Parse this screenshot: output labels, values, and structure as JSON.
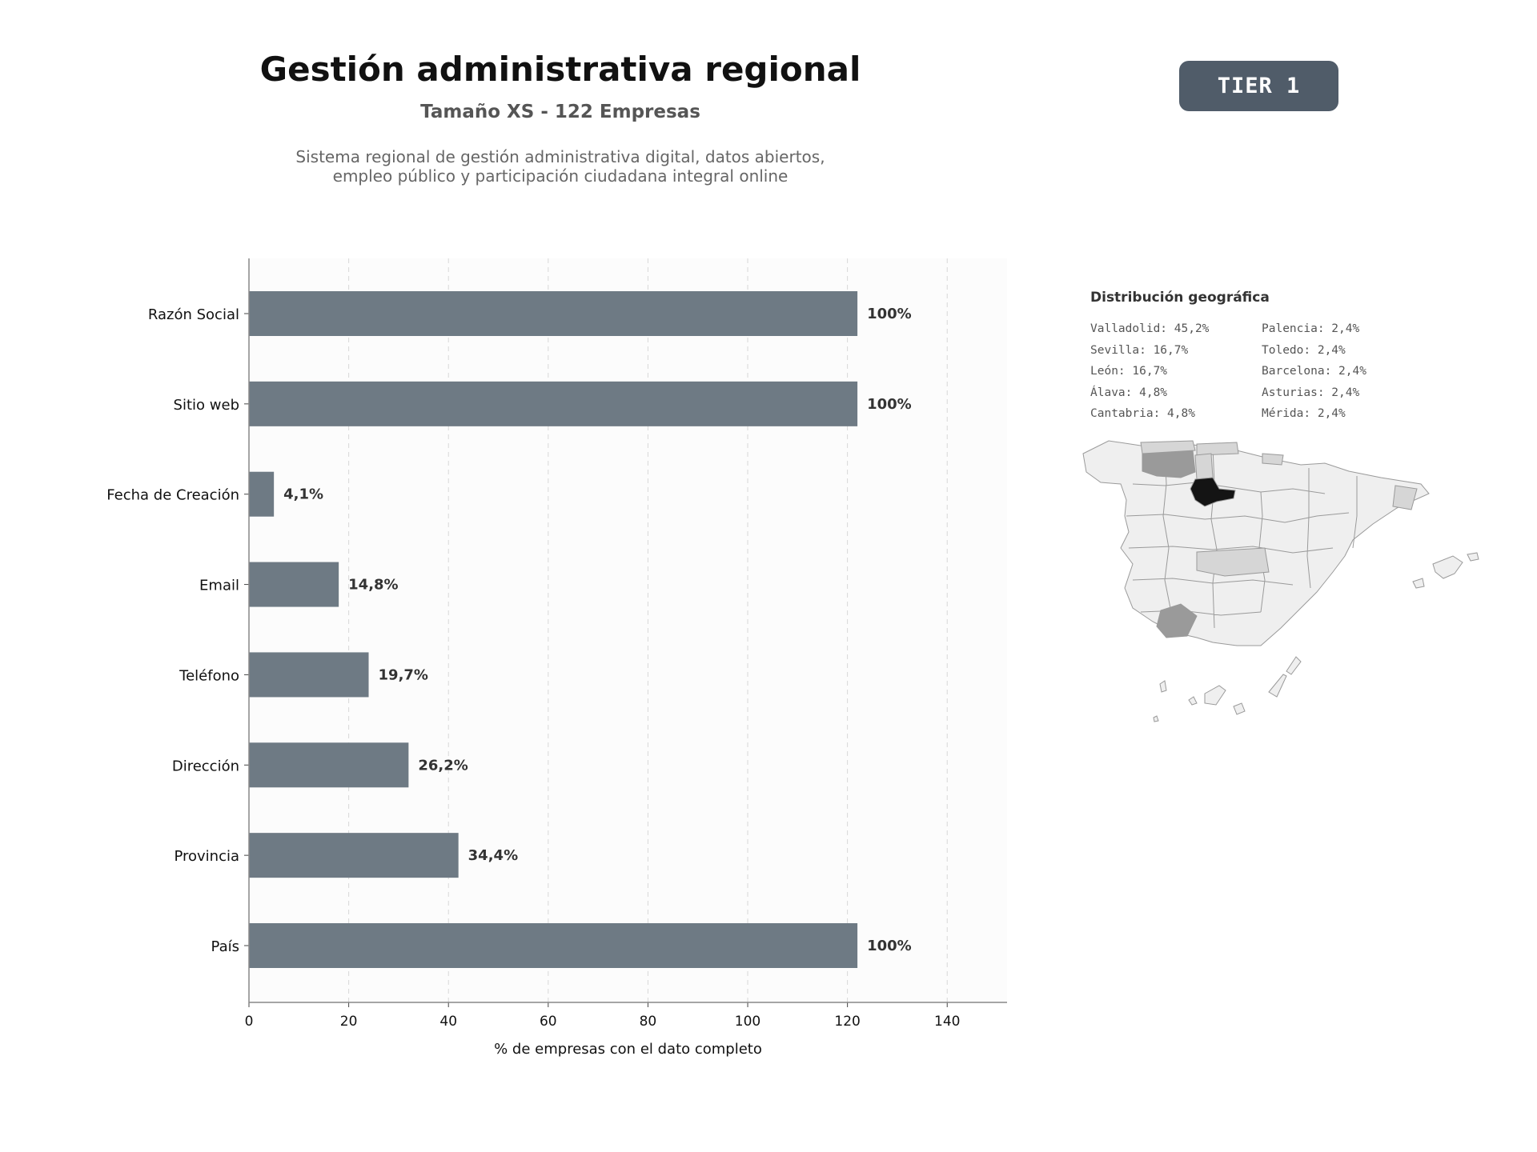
{
  "header": {
    "title": "Gestión administrativa regional",
    "subtitle": "Tamaño XS - 122 Empresas",
    "description_line1": "Sistema regional de gestión administrativa digital, datos abiertos,",
    "description_line2": "empleo público y participación ciudadana integral online",
    "badge": "TIER 1"
  },
  "chart_data": {
    "type": "bar",
    "orientation": "horizontal",
    "categories": [
      "Razón Social",
      "Sitio web",
      "Fecha de Creación",
      "Email",
      "Teléfono",
      "Dirección",
      "Provincia",
      "País"
    ],
    "values": [
      122,
      122,
      5,
      18,
      24,
      32,
      42,
      122
    ],
    "data_labels": [
      "100%",
      "100%",
      "4,1%",
      "14,8%",
      "19,7%",
      "26,2%",
      "34,4%",
      "100%"
    ],
    "xlabel": "% de empresas con el dato completo",
    "ylabel": "",
    "xlim": [
      0,
      152
    ],
    "xticks": [
      "0",
      "20",
      "40",
      "60",
      "80",
      "100",
      "120",
      "140"
    ],
    "grid": "vertical dashed",
    "bar_color": "#6e7a84"
  },
  "geo": {
    "title": "Distribución geográfica",
    "items": [
      "Valladolid: 45,2%",
      "Palencia: 2,4%",
      "Sevilla: 16,7%",
      "Toledo: 2,4%",
      "León: 16,7%",
      "Barcelona: 2,4%",
      "Álava: 4,8%",
      "Asturias: 2,4%",
      "Cantabria: 4,8%",
      "Mérida: 2,4%"
    ],
    "map_icon": "spain-provinces-map"
  }
}
